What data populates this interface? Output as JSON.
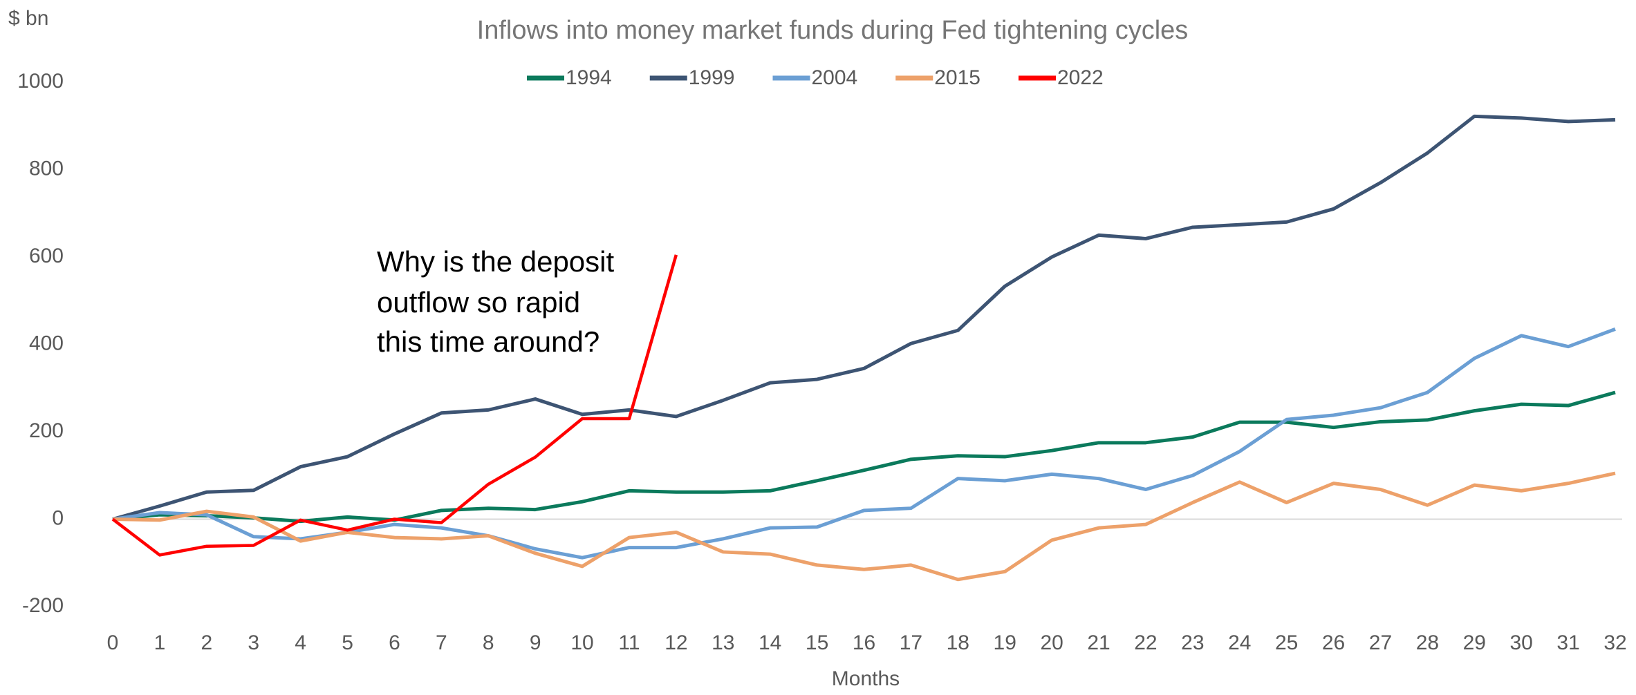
{
  "chart_data": {
    "type": "line",
    "title": "Inflows into money market funds during Fed tightening cycles",
    "y_unit_label": "$ bn",
    "x_label": "Months",
    "annotation": [
      "Why is the deposit",
      "outflow so rapid",
      "this time around?"
    ],
    "x": [
      0,
      1,
      2,
      3,
      4,
      5,
      6,
      7,
      8,
      9,
      10,
      11,
      12,
      13,
      14,
      15,
      16,
      17,
      18,
      19,
      20,
      21,
      22,
      23,
      24,
      25,
      26,
      27,
      28,
      29,
      30,
      31,
      32
    ],
    "xlim": [
      0,
      32
    ],
    "ylim": [
      -200,
      1000
    ],
    "yticks": [
      -200,
      0,
      200,
      400,
      600,
      800,
      1000
    ],
    "series": [
      {
        "name": "1994",
        "color": "#0b7a5c",
        "values": [
          0,
          10,
          8,
          3,
          -5,
          5,
          -2,
          20,
          25,
          22,
          40,
          65,
          62,
          62,
          65,
          88,
          112,
          137,
          145,
          143,
          157,
          175,
          175,
          188,
          222,
          222,
          210,
          223,
          227,
          248,
          263,
          260,
          290
        ]
      },
      {
        "name": "1999",
        "color": "#3d5473",
        "values": [
          0,
          30,
          62,
          66,
          120,
          143,
          195,
          243,
          250,
          275,
          240,
          250,
          235,
          272,
          312,
          320,
          345,
          402,
          432,
          533,
          600,
          650,
          642,
          668,
          674,
          680,
          710,
          770,
          838,
          922,
          918,
          910,
          914
        ]
      },
      {
        "name": "2004",
        "color": "#6b9fd4",
        "values": [
          0,
          15,
          10,
          -40,
          -45,
          -30,
          -12,
          -20,
          -38,
          -68,
          -88,
          -65,
          -65,
          -45,
          -20,
          -18,
          20,
          25,
          93,
          88,
          103,
          93,
          68,
          100,
          155,
          228,
          238,
          255,
          290,
          368,
          420,
          395,
          435
        ]
      },
      {
        "name": "2015",
        "color": "#eda16a",
        "values": [
          0,
          -2,
          18,
          5,
          -50,
          -30,
          -42,
          -45,
          -38,
          -78,
          -108,
          -42,
          -30,
          -75,
          -80,
          -105,
          -115,
          -105,
          -138,
          -120,
          -48,
          -20,
          -12,
          38,
          85,
          38,
          82,
          68,
          32,
          78,
          65,
          82,
          105
        ]
      },
      {
        "name": "2022",
        "color": "#ff0000",
        "values": [
          0,
          -82,
          -62,
          -60,
          -2,
          -25,
          0,
          -8,
          80,
          142,
          230,
          230,
          605,
          null,
          null,
          null,
          null,
          null,
          null,
          null,
          null,
          null,
          null,
          null,
          null,
          null,
          null,
          null,
          null,
          null,
          null,
          null,
          null
        ]
      }
    ]
  }
}
